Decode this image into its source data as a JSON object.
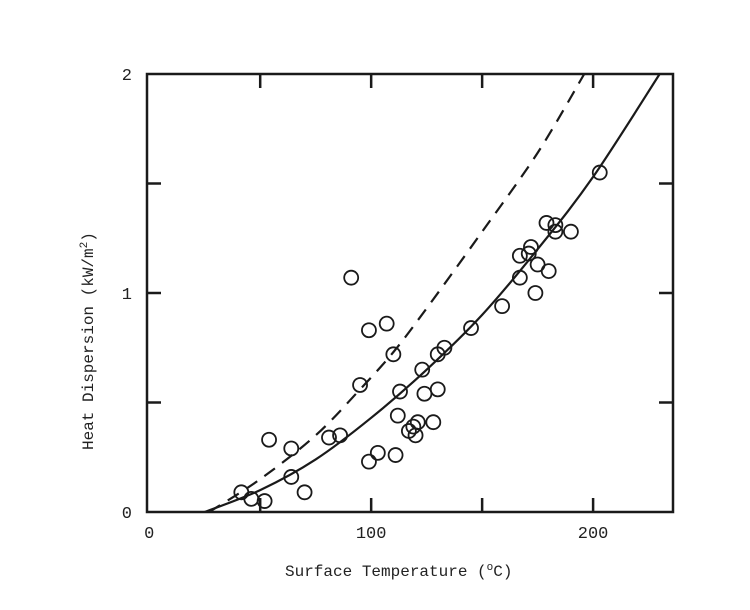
{
  "chart_data": {
    "type": "scatter",
    "xlabel": "Surface Temperature (",
    "xlabel_unit_sup": "o",
    "xlabel_unit": "C)",
    "ylabel": "Heat Dispersion  (kW/m",
    "ylabel_sup": "2",
    "ylabel_end": ")",
    "xlim": [
      -1,
      236
    ],
    "ylim": [
      0,
      2
    ],
    "x_ticks": [
      0,
      50,
      100,
      150,
      200
    ],
    "x_tick_labels": [
      "0",
      "100",
      "200"
    ],
    "x_tick_label_values": [
      0,
      100,
      200
    ],
    "y_ticks": [
      0,
      0.5,
      1,
      1.5,
      2
    ],
    "y_tick_labels": [
      "0",
      "1",
      "2"
    ],
    "y_tick_label_values": [
      0,
      1,
      2
    ],
    "grid": false,
    "points": [
      [
        41.5,
        0.09
      ],
      [
        46,
        0.06
      ],
      [
        52,
        0.05
      ],
      [
        54,
        0.33
      ],
      [
        64,
        0.29
      ],
      [
        64,
        0.16
      ],
      [
        70,
        0.09
      ],
      [
        81,
        0.34
      ],
      [
        86,
        0.35
      ],
      [
        91,
        1.07
      ],
      [
        95,
        0.58
      ],
      [
        99,
        0.83
      ],
      [
        99,
        0.23
      ],
      [
        103,
        0.27
      ],
      [
        107,
        0.86
      ],
      [
        110,
        0.72
      ],
      [
        111,
        0.26
      ],
      [
        112,
        0.44
      ],
      [
        113,
        0.55
      ],
      [
        117,
        0.37
      ],
      [
        119,
        0.39
      ],
      [
        120,
        0.35
      ],
      [
        121,
        0.41
      ],
      [
        123,
        0.65
      ],
      [
        124,
        0.54
      ],
      [
        128,
        0.41
      ],
      [
        130,
        0.72
      ],
      [
        130,
        0.56
      ],
      [
        133,
        0.75
      ],
      [
        145,
        0.84
      ],
      [
        159,
        0.94
      ],
      [
        167,
        1.07
      ],
      [
        167,
        1.17
      ],
      [
        171,
        1.18
      ],
      [
        172,
        1.21
      ],
      [
        174,
        1.0
      ],
      [
        175,
        1.13
      ],
      [
        179,
        1.32
      ],
      [
        180,
        1.1
      ],
      [
        183,
        1.31
      ],
      [
        183,
        1.28
      ],
      [
        190,
        1.28
      ],
      [
        203,
        1.55
      ]
    ],
    "curves": [
      {
        "style": "solid",
        "points": [
          [
            25,
            0
          ],
          [
            50,
            0.1
          ],
          [
            75,
            0.24
          ],
          [
            100,
            0.43
          ],
          [
            125,
            0.65
          ],
          [
            150,
            0.9
          ],
          [
            175,
            1.2
          ],
          [
            200,
            1.53
          ],
          [
            230,
            2.0
          ]
        ]
      },
      {
        "style": "dashed",
        "points": [
          [
            27,
            0
          ],
          [
            50,
            0.15
          ],
          [
            75,
            0.35
          ],
          [
            95,
            0.56
          ],
          [
            110,
            0.73
          ],
          [
            125,
            0.93
          ],
          [
            150,
            1.28
          ],
          [
            175,
            1.64
          ],
          [
            196,
            2.0
          ]
        ]
      }
    ],
    "colors": {
      "ink": "#1a1a1a",
      "background": "#ffffff"
    }
  }
}
